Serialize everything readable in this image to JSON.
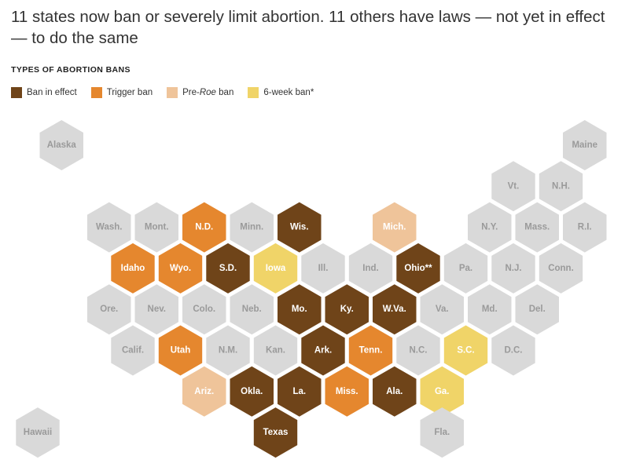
{
  "title": "11 states now ban or severely limit abortion. 11 others have laws — not yet in effect — to do the same",
  "legend": {
    "title": "TYPES OF ABORTION BANS",
    "items": [
      {
        "key": "ban",
        "label": "Ban in effect",
        "color": "#6f4419"
      },
      {
        "key": "trigger",
        "label": "Trigger ban",
        "color": "#e5872e"
      },
      {
        "key": "preroe",
        "label_pre": "Pre-",
        "label_italic": "Roe",
        "label_post": " ban",
        "color": "#efc49a"
      },
      {
        "key": "sixweek",
        "label": "6-week ban*",
        "color": "#f0d468"
      }
    ]
  },
  "colors": {
    "none": "#d9d9d9",
    "ban": "#6f4419",
    "trigger": "#e5872e",
    "preroe": "#efc49a",
    "sixweek": "#f0d468",
    "text_dark_bg": "#ffffff",
    "text_light_bg": "#9a9a9a"
  },
  "states": [
    {
      "label": "Alaska",
      "status": "none",
      "col": 0.5,
      "row": 0
    },
    {
      "label": "Maine",
      "status": "none",
      "col": 11.5,
      "row": 0
    },
    {
      "label": "Vt.",
      "status": "none",
      "col": 10,
      "row": 1
    },
    {
      "label": "N.H.",
      "status": "none",
      "col": 11,
      "row": 1
    },
    {
      "label": "Wash.",
      "status": "none",
      "col": 1.5,
      "row": 2
    },
    {
      "label": "Mont.",
      "status": "none",
      "col": 2.5,
      "row": 2
    },
    {
      "label": "N.D.",
      "status": "trigger",
      "col": 3.5,
      "row": 2
    },
    {
      "label": "Minn.",
      "status": "none",
      "col": 4.5,
      "row": 2
    },
    {
      "label": "Wis.",
      "status": "ban",
      "col": 5.5,
      "row": 2
    },
    {
      "label": "Mich.",
      "status": "preroe",
      "col": 7.5,
      "row": 2
    },
    {
      "label": "N.Y.",
      "status": "none",
      "col": 9.5,
      "row": 2
    },
    {
      "label": "Mass.",
      "status": "none",
      "col": 10.5,
      "row": 2
    },
    {
      "label": "R.I.",
      "status": "none",
      "col": 11.5,
      "row": 2
    },
    {
      "label": "Idaho",
      "status": "trigger",
      "col": 2,
      "row": 3
    },
    {
      "label": "Wyo.",
      "status": "trigger",
      "col": 3,
      "row": 3
    },
    {
      "label": "S.D.",
      "status": "ban",
      "col": 4,
      "row": 3
    },
    {
      "label": "Iowa",
      "status": "sixweek",
      "col": 5,
      "row": 3
    },
    {
      "label": "Ill.",
      "status": "none",
      "col": 6,
      "row": 3
    },
    {
      "label": "Ind.",
      "status": "none",
      "col": 7,
      "row": 3
    },
    {
      "label": "Ohio**",
      "status": "ban",
      "col": 8,
      "row": 3
    },
    {
      "label": "Pa.",
      "status": "none",
      "col": 9,
      "row": 3
    },
    {
      "label": "N.J.",
      "status": "none",
      "col": 10,
      "row": 3
    },
    {
      "label": "Conn.",
      "status": "none",
      "col": 11,
      "row": 3
    },
    {
      "label": "Ore.",
      "status": "none",
      "col": 1.5,
      "row": 4
    },
    {
      "label": "Nev.",
      "status": "none",
      "col": 2.5,
      "row": 4
    },
    {
      "label": "Colo.",
      "status": "none",
      "col": 3.5,
      "row": 4
    },
    {
      "label": "Neb.",
      "status": "none",
      "col": 4.5,
      "row": 4
    },
    {
      "label": "Mo.",
      "status": "ban",
      "col": 5.5,
      "row": 4
    },
    {
      "label": "Ky.",
      "status": "ban",
      "col": 6.5,
      "row": 4
    },
    {
      "label": "W.Va.",
      "status": "ban",
      "col": 7.5,
      "row": 4
    },
    {
      "label": "Va.",
      "status": "none",
      "col": 8.5,
      "row": 4
    },
    {
      "label": "Md.",
      "status": "none",
      "col": 9.5,
      "row": 4
    },
    {
      "label": "Del.",
      "status": "none",
      "col": 10.5,
      "row": 4
    },
    {
      "label": "Calif.",
      "status": "none",
      "col": 2,
      "row": 5
    },
    {
      "label": "Utah",
      "status": "trigger",
      "col": 3,
      "row": 5
    },
    {
      "label": "N.M.",
      "status": "none",
      "col": 4,
      "row": 5
    },
    {
      "label": "Kan.",
      "status": "none",
      "col": 5,
      "row": 5
    },
    {
      "label": "Ark.",
      "status": "ban",
      "col": 6,
      "row": 5
    },
    {
      "label": "Tenn.",
      "status": "trigger",
      "col": 7,
      "row": 5
    },
    {
      "label": "N.C.",
      "status": "none",
      "col": 8,
      "row": 5
    },
    {
      "label": "S.C.",
      "status": "sixweek",
      "col": 9,
      "row": 5
    },
    {
      "label": "D.C.",
      "status": "none",
      "col": 10,
      "row": 5
    },
    {
      "label": "Ariz.",
      "status": "preroe",
      "col": 3.5,
      "row": 6
    },
    {
      "label": "Okla.",
      "status": "ban",
      "col": 4.5,
      "row": 6
    },
    {
      "label": "La.",
      "status": "ban",
      "col": 5.5,
      "row": 6
    },
    {
      "label": "Miss.",
      "status": "trigger",
      "col": 6.5,
      "row": 6
    },
    {
      "label": "Ala.",
      "status": "ban",
      "col": 7.5,
      "row": 6
    },
    {
      "label": "Ga.",
      "status": "sixweek",
      "col": 8.5,
      "row": 6
    },
    {
      "label": "Hawaii",
      "status": "none",
      "col": 0,
      "row": 7
    },
    {
      "label": "Texas",
      "status": "ban",
      "col": 5,
      "row": 7
    },
    {
      "label": "Fla.",
      "status": "none",
      "col": 8.5,
      "row": 7
    }
  ]
}
